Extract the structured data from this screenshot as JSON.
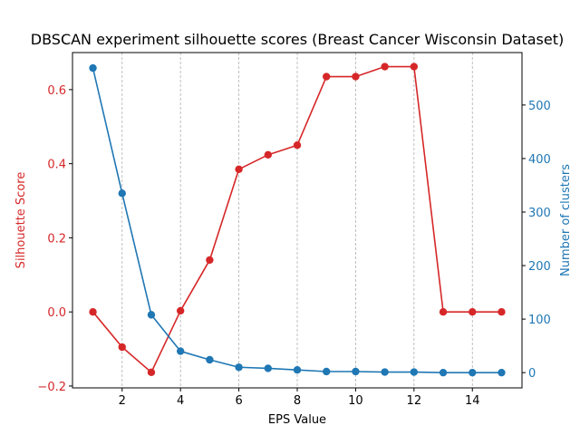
{
  "chart_data": {
    "type": "line",
    "title": "DBSCAN experiment silhouette scores (Breast Cancer Wisconsin Dataset)",
    "xlabel": "EPS Value",
    "ylabel_left": "Silhouette Score",
    "ylabel_right": "Number of clusters",
    "x": [
      1,
      2,
      3,
      4,
      5,
      6,
      7,
      8,
      9,
      10,
      11,
      12,
      13,
      14,
      15
    ],
    "xlim": [
      0.3,
      15.7
    ],
    "xticks": [
      "2",
      "4",
      "6",
      "8",
      "10",
      "12",
      "14"
    ],
    "ylim_left": [
      -0.205,
      0.7
    ],
    "yticks_left": [
      "−0.2",
      "0.0",
      "0.2",
      "0.4",
      "0.6"
    ],
    "ylim_right": [
      -28.5,
      598
    ],
    "yticks_right": [
      "0",
      "100",
      "200",
      "300",
      "400",
      "500"
    ],
    "grid": "x-dashed",
    "series": [
      {
        "axis": "left",
        "color": "#d62728",
        "values": [
          0.0,
          -0.095,
          -0.163,
          0.003,
          0.14,
          0.385,
          0.424,
          0.45,
          0.635,
          0.635,
          0.662,
          0.662,
          0.0,
          0.0,
          0.0
        ]
      },
      {
        "axis": "right",
        "color": "#1f77b4",
        "values": [
          569,
          335,
          108,
          40,
          24,
          10,
          8,
          5,
          2,
          2,
          1,
          1,
          0,
          0,
          0
        ]
      }
    ]
  }
}
